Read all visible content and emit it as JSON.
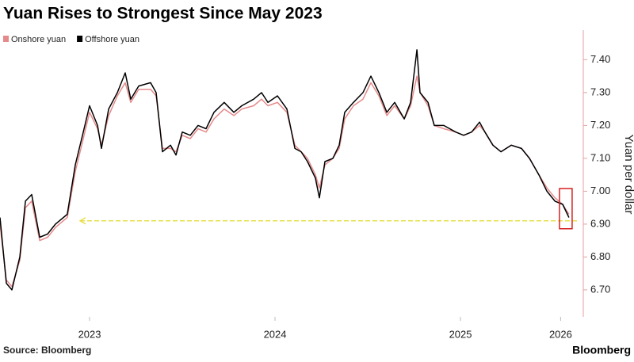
{
  "chart_data": {
    "type": "line",
    "title": "Yuan Rises to Strongest Since May 2023",
    "y_axis_label": "Yuan per dollar",
    "source": "Source: Bloomberg",
    "brand": "Bloomberg",
    "x": [
      2023.017,
      2023.051,
      2023.081,
      2023.124,
      2023.154,
      2023.188,
      2023.231,
      2023.274,
      2023.316,
      2023.38,
      2023.423,
      2023.466,
      2023.5,
      2023.543,
      2023.564,
      2023.603,
      2023.65,
      2023.692,
      2023.722,
      2023.765,
      2023.829,
      2023.859,
      2023.893,
      2023.936,
      2023.966,
      2024.0,
      2024.043,
      2024.085,
      2024.128,
      2024.171,
      2024.226,
      2024.278,
      2024.321,
      2024.385,
      2024.427,
      2024.462,
      2024.513,
      2024.564,
      2024.607,
      2024.641,
      2024.675,
      2024.718,
      2024.739,
      2024.769,
      2024.812,
      2024.846,
      2024.876,
      2024.923,
      2024.974,
      2025.017,
      2025.06,
      2025.103,
      2025.145,
      2025.197,
      2025.231,
      2025.265,
      2025.282,
      2025.325,
      2025.359,
      2025.41,
      2025.474,
      2025.517,
      2025.56,
      2025.603,
      2025.632,
      2025.675,
      2025.718,
      2025.774,
      2025.829,
      2025.872,
      2025.923,
      2025.966,
      2026.009,
      2026.051,
      2026.085
    ],
    "series": [
      {
        "name": "Onshore yuan",
        "color": "#e58a8a",
        "values": [
          6.9,
          6.73,
          6.71,
          6.79,
          6.95,
          6.97,
          6.85,
          6.86,
          6.89,
          6.92,
          7.06,
          7.16,
          7.24,
          7.19,
          7.14,
          7.23,
          7.29,
          7.33,
          7.27,
          7.31,
          7.31,
          7.29,
          7.13,
          7.13,
          7.12,
          7.17,
          7.16,
          7.19,
          7.18,
          7.22,
          7.25,
          7.23,
          7.25,
          7.26,
          7.28,
          7.26,
          7.27,
          7.24,
          7.14,
          7.12,
          7.1,
          7.05,
          7.01,
          7.08,
          7.1,
          7.13,
          7.22,
          7.26,
          7.28,
          7.33,
          7.29,
          7.23,
          7.26,
          7.22,
          7.26,
          7.35,
          7.3,
          7.26,
          7.2,
          7.19,
          7.18,
          7.17,
          7.18,
          7.2,
          7.18,
          7.14,
          7.12,
          7.14,
          7.13,
          7.1,
          7.05,
          7.01,
          6.98,
          6.96,
          6.93
        ]
      },
      {
        "name": "Offshore yuan",
        "color": "#000000",
        "values": [
          6.92,
          6.72,
          6.7,
          6.8,
          6.97,
          6.99,
          6.86,
          6.87,
          6.9,
          6.93,
          7.08,
          7.18,
          7.26,
          7.2,
          7.13,
          7.25,
          7.3,
          7.36,
          7.28,
          7.32,
          7.33,
          7.3,
          7.12,
          7.14,
          7.11,
          7.18,
          7.17,
          7.2,
          7.19,
          7.24,
          7.27,
          7.24,
          7.26,
          7.28,
          7.3,
          7.27,
          7.29,
          7.25,
          7.13,
          7.12,
          7.09,
          7.04,
          6.98,
          7.09,
          7.1,
          7.14,
          7.24,
          7.27,
          7.3,
          7.35,
          7.3,
          7.24,
          7.27,
          7.22,
          7.27,
          7.43,
          7.3,
          7.27,
          7.2,
          7.2,
          7.18,
          7.17,
          7.18,
          7.21,
          7.18,
          7.14,
          7.12,
          7.14,
          7.13,
          7.1,
          7.05,
          7.0,
          6.97,
          6.96,
          6.92
        ]
      }
    ],
    "reference_line": 6.91,
    "xlim": [
      2023.017,
      2026.128
    ],
    "xticks": [
      {
        "value": 2023.5,
        "label": "2023"
      },
      {
        "value": 2024.5,
        "label": "2024"
      },
      {
        "value": 2025.5,
        "label": "2025"
      },
      {
        "value": 2026.04,
        "label": "2026"
      }
    ],
    "ylim": [
      6.63,
      7.49
    ],
    "yticks": [
      {
        "value": 6.7,
        "label": "6.70"
      },
      {
        "value": 6.8,
        "label": "6.80"
      },
      {
        "value": 6.9,
        "label": "6.90"
      },
      {
        "value": 7.0,
        "label": "7.00"
      },
      {
        "value": 7.1,
        "label": "7.10"
      },
      {
        "value": 7.2,
        "label": "7.20"
      },
      {
        "value": 7.3,
        "label": "7.30"
      },
      {
        "value": 7.4,
        "label": "7.40"
      }
    ],
    "y_axis_side": "right",
    "grid": false
  }
}
